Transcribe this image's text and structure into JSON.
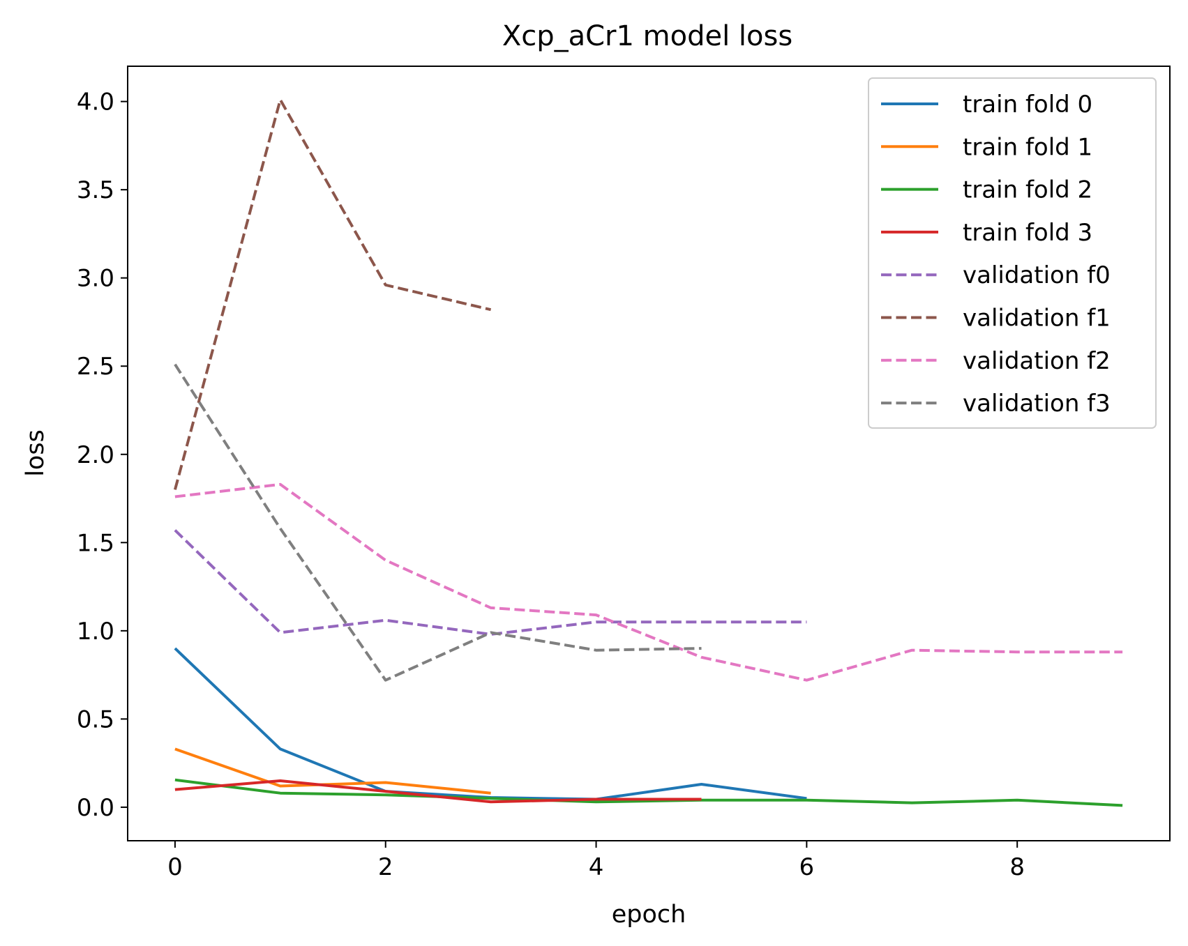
{
  "chart_data": {
    "type": "line",
    "title": "Xcp_aCr1 model loss",
    "xlabel": "epoch",
    "ylabel": "loss",
    "xlim": [
      -0.45,
      9.45
    ],
    "ylim": [
      -0.19,
      4.2
    ],
    "xticks": [
      "0",
      "2",
      "4",
      "6",
      "8"
    ],
    "yticks": [
      "0.0",
      "0.5",
      "1.0",
      "1.5",
      "2.0",
      "2.5",
      "3.0",
      "3.5",
      "4.0"
    ],
    "grid": false,
    "legend_position": "top-right",
    "series": [
      {
        "name": "train fold 0",
        "style": "solid",
        "color": "#1f77b4",
        "x": [
          0,
          1,
          2,
          3,
          4,
          5,
          6
        ],
        "y": [
          0.9,
          0.33,
          0.09,
          0.055,
          0.045,
          0.13,
          0.05
        ]
      },
      {
        "name": "train fold 1",
        "style": "solid",
        "color": "#ff7f0e",
        "x": [
          0,
          1,
          2,
          3
        ],
        "y": [
          0.33,
          0.12,
          0.14,
          0.08
        ]
      },
      {
        "name": "train fold 2",
        "style": "solid",
        "color": "#2ca02c",
        "x": [
          0,
          1,
          2,
          3,
          4,
          5,
          6,
          7,
          8,
          9
        ],
        "y": [
          0.155,
          0.08,
          0.07,
          0.05,
          0.03,
          0.04,
          0.04,
          0.025,
          0.04,
          0.01
        ]
      },
      {
        "name": "train fold 3",
        "style": "solid",
        "color": "#d62728",
        "x": [
          0,
          1,
          2,
          3,
          4,
          5
        ],
        "y": [
          0.1,
          0.15,
          0.09,
          0.03,
          0.045,
          0.045
        ]
      },
      {
        "name": "validation f0",
        "style": "dashed",
        "color": "#9467bd",
        "x": [
          0,
          1,
          2,
          3,
          4,
          5,
          6
        ],
        "y": [
          1.57,
          0.99,
          1.06,
          0.98,
          1.05,
          1.05,
          1.05
        ]
      },
      {
        "name": "validation f1",
        "style": "dashed",
        "color": "#8c564b",
        "x": [
          0,
          1,
          2,
          3
        ],
        "y": [
          1.8,
          4.01,
          2.96,
          2.82
        ]
      },
      {
        "name": "validation f2",
        "style": "dashed",
        "color": "#e377c2",
        "x": [
          0,
          1,
          2,
          3,
          4,
          5,
          6,
          7,
          8,
          9
        ],
        "y": [
          1.76,
          1.83,
          1.4,
          1.13,
          1.09,
          0.85,
          0.72,
          0.89,
          0.88,
          0.88
        ]
      },
      {
        "name": "validation f3",
        "style": "dashed",
        "color": "#7f7f7f",
        "x": [
          0,
          1,
          2,
          3,
          4,
          5
        ],
        "y": [
          2.51,
          1.58,
          0.72,
          0.99,
          0.89,
          0.9
        ]
      }
    ]
  }
}
